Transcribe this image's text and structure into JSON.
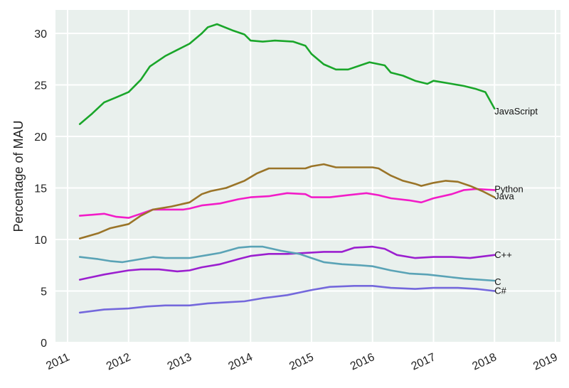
{
  "chart_data": {
    "type": "line",
    "title": "",
    "xlabel": "",
    "ylabel": "Percentage of MAU",
    "xlim": [
      2010.85,
      2019.08
    ],
    "ylim": [
      0,
      32.3
    ],
    "x_ticks": [
      "2011",
      "2012",
      "2013",
      "2014",
      "2015",
      "2016",
      "2017",
      "2018",
      "2019"
    ],
    "y_ticks": [
      "0",
      "5",
      "10",
      "15",
      "20",
      "25",
      "30"
    ],
    "grid": true,
    "legend": "inline labels at series end",
    "background": "#e9f0ed",
    "series": [
      {
        "name": "JavaScript",
        "color": "#1aa62a",
        "label_dy": 4,
        "x": [
          2011.2,
          2011.4,
          2011.6,
          2011.8,
          2012.0,
          2012.2,
          2012.35,
          2012.6,
          2012.8,
          2013.0,
          2013.2,
          2013.3,
          2013.45,
          2013.7,
          2013.9,
          2014.0,
          2014.2,
          2014.4,
          2014.7,
          2014.9,
          2015.0,
          2015.2,
          2015.4,
          2015.6,
          2015.8,
          2015.95,
          2016.2,
          2016.3,
          2016.5,
          2016.7,
          2016.9,
          2017.0,
          2017.3,
          2017.5,
          2017.7,
          2017.85,
          2018.0
        ],
        "values": [
          21.2,
          22.2,
          23.3,
          23.8,
          24.3,
          25.5,
          26.8,
          27.8,
          28.4,
          29.0,
          30.0,
          30.6,
          30.9,
          30.3,
          29.9,
          29.3,
          29.2,
          29.3,
          29.2,
          28.8,
          28.0,
          27.0,
          26.5,
          26.5,
          26.9,
          27.2,
          26.9,
          26.2,
          25.9,
          25.4,
          25.1,
          25.4,
          25.1,
          24.9,
          24.6,
          24.3,
          22.7
        ]
      },
      {
        "name": "Python",
        "color": "#f21cc8",
        "label_dy": -1,
        "x": [
          2011.2,
          2011.6,
          2011.8,
          2012.0,
          2012.2,
          2012.4,
          2012.6,
          2012.9,
          2013.0,
          2013.2,
          2013.5,
          2013.8,
          2014.0,
          2014.3,
          2014.6,
          2014.9,
          2015.0,
          2015.3,
          2015.6,
          2015.9,
          2016.1,
          2016.3,
          2016.6,
          2016.8,
          2017.0,
          2017.3,
          2017.5,
          2017.7,
          2018.0
        ],
        "values": [
          12.3,
          12.5,
          12.2,
          12.1,
          12.5,
          12.9,
          12.9,
          12.9,
          13.0,
          13.3,
          13.5,
          13.9,
          14.1,
          14.2,
          14.5,
          14.4,
          14.1,
          14.1,
          14.3,
          14.5,
          14.3,
          14.0,
          13.8,
          13.6,
          14.0,
          14.4,
          14.8,
          14.9,
          14.8
        ]
      },
      {
        "name": "Java",
        "color": "#9a7428",
        "label_dy": -1,
        "x": [
          2011.2,
          2011.5,
          2011.7,
          2012.0,
          2012.2,
          2012.4,
          2012.7,
          2013.0,
          2013.2,
          2013.35,
          2013.6,
          2013.9,
          2014.1,
          2014.3,
          2014.6,
          2014.9,
          2015.0,
          2015.2,
          2015.4,
          2015.6,
          2016.0,
          2016.1,
          2016.3,
          2016.5,
          2016.7,
          2016.8,
          2017.0,
          2017.2,
          2017.4,
          2017.6,
          2017.8,
          2018.0
        ],
        "values": [
          10.1,
          10.6,
          11.1,
          11.5,
          12.3,
          12.9,
          13.2,
          13.6,
          14.4,
          14.7,
          15.0,
          15.7,
          16.4,
          16.9,
          16.9,
          16.9,
          17.1,
          17.3,
          17.0,
          17.0,
          17.0,
          16.9,
          16.2,
          15.7,
          15.4,
          15.2,
          15.5,
          15.7,
          15.6,
          15.2,
          14.7,
          14.1
        ]
      },
      {
        "name": "C++",
        "color": "#9b1fcf",
        "label_dy": 0,
        "x": [
          2011.2,
          2011.6,
          2011.8,
          2012.0,
          2012.2,
          2012.5,
          2012.8,
          2013.0,
          2013.2,
          2013.5,
          2013.8,
          2014.0,
          2014.3,
          2014.6,
          2014.9,
          2015.2,
          2015.5,
          2015.7,
          2016.0,
          2016.2,
          2016.4,
          2016.7,
          2017.0,
          2017.3,
          2017.6,
          2018.0
        ],
        "values": [
          6.1,
          6.6,
          6.8,
          7.0,
          7.1,
          7.1,
          6.9,
          7.0,
          7.3,
          7.6,
          8.1,
          8.4,
          8.6,
          8.6,
          8.7,
          8.8,
          8.8,
          9.2,
          9.3,
          9.1,
          8.5,
          8.2,
          8.3,
          8.3,
          8.2,
          8.5
        ]
      },
      {
        "name": "C",
        "color": "#5aa3b6",
        "label_dy": 2,
        "x": [
          2011.2,
          2011.5,
          2011.7,
          2011.9,
          2012.1,
          2012.4,
          2012.6,
          2013.0,
          2013.3,
          2013.5,
          2013.8,
          2014.0,
          2014.2,
          2014.5,
          2014.8,
          2015.0,
          2015.2,
          2015.5,
          2015.8,
          2016.0,
          2016.3,
          2016.6,
          2016.9,
          2017.2,
          2017.5,
          2018.0
        ],
        "values": [
          8.3,
          8.1,
          7.9,
          7.8,
          8.0,
          8.3,
          8.2,
          8.2,
          8.5,
          8.7,
          9.2,
          9.3,
          9.3,
          8.9,
          8.6,
          8.2,
          7.8,
          7.6,
          7.5,
          7.4,
          7.0,
          6.7,
          6.6,
          6.4,
          6.2,
          6.0
        ]
      },
      {
        "name": "C#",
        "color": "#7468dc",
        "label_dy": 0,
        "x": [
          2011.2,
          2011.6,
          2012.0,
          2012.3,
          2012.6,
          2013.0,
          2013.3,
          2013.6,
          2013.9,
          2014.2,
          2014.6,
          2015.0,
          2015.3,
          2015.7,
          2016.0,
          2016.3,
          2016.7,
          2017.0,
          2017.4,
          2017.7,
          2018.0
        ],
        "values": [
          2.9,
          3.2,
          3.3,
          3.5,
          3.6,
          3.6,
          3.8,
          3.9,
          4.0,
          4.3,
          4.6,
          5.1,
          5.4,
          5.5,
          5.5,
          5.3,
          5.2,
          5.3,
          5.3,
          5.2,
          5.0
        ]
      }
    ]
  }
}
